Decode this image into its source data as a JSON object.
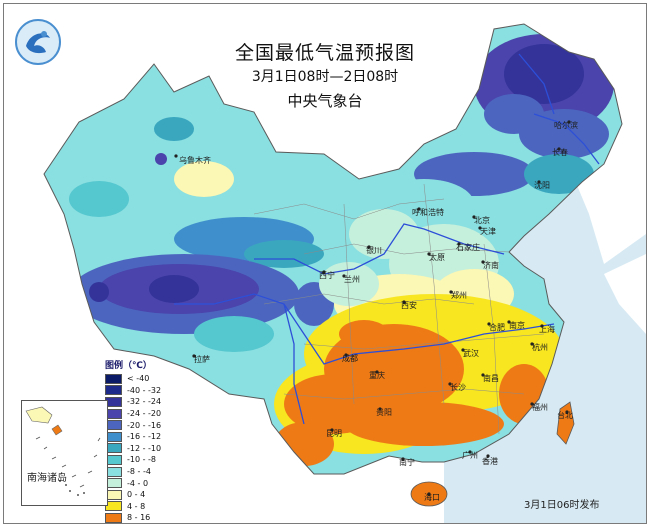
{
  "title": "全国最低气温预报图",
  "period": "3月1日08时—2日08时",
  "agency": "中央气象台",
  "issued": "3月1日06时发布",
  "legend": {
    "title": "图例（℃）",
    "items": [
      {
        "label": "< -40",
        "color": "#0b1a66"
      },
      {
        "label": "-40 - -32",
        "color": "#1e2a8a"
      },
      {
        "label": "-32 - -24",
        "color": "#33339a"
      },
      {
        "label": "-24 - -20",
        "color": "#4a44ac"
      },
      {
        "label": "-20 - -16",
        "color": "#4c66bf"
      },
      {
        "label": "-16 - -12",
        "color": "#3f8fcc"
      },
      {
        "label": "-12 - -10",
        "color": "#3aa7bf"
      },
      {
        "label": "-10 - -8",
        "color": "#55c7cf"
      },
      {
        "label": "-8 - -4",
        "color": "#8adfe0"
      },
      {
        "label": "-4 - 0",
        "color": "#c5f0dc"
      },
      {
        "label": "0 - 4",
        "color": "#fbf7b4"
      },
      {
        "label": "4 - 8",
        "color": "#f7e620"
      },
      {
        "label": "8 - 16",
        "color": "#ee7a16"
      },
      {
        "label": "> 16",
        "color": "#e39692"
      }
    ]
  },
  "inset_label": "南海诸岛",
  "cities": [
    "哈尔滨",
    "长春",
    "沈阳",
    "乌鲁木齐",
    "呼和浩特",
    "北京",
    "天津",
    "石家庄",
    "银川",
    "太原",
    "济南",
    "西宁",
    "兰州",
    "郑州",
    "西安",
    "合肥",
    "南京",
    "上海",
    "武汉",
    "杭州",
    "拉萨",
    "成都",
    "重庆",
    "长沙",
    "南昌",
    "福州",
    "台北",
    "贵阳",
    "昆明",
    "南宁",
    "广州",
    "香港",
    "海口"
  ]
}
